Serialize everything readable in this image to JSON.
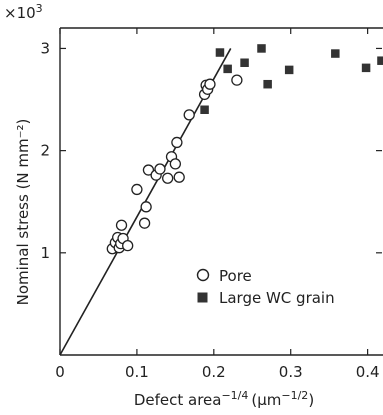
{
  "chart_data": {
    "type": "scatter",
    "title": "",
    "xlabel": "Defect area",
    "xlabel_sup": "−1/4",
    "xlabel_unit_open": "(μm",
    "xlabel_unit_sup": "−1/2",
    "xlabel_unit_close": ")",
    "ylabel": "Nominal stress (N mm⁻²)",
    "y_multiplier": "×10",
    "y_multiplier_sup": "3",
    "xlim": [
      0,
      0.42
    ],
    "ylim": [
      0,
      3.2
    ],
    "x_ticks": [
      0,
      0.1,
      0.2,
      0.3,
      0.4
    ],
    "x_tick_labels": [
      "0",
      "0.1",
      "0.2",
      "0.3",
      "0.4"
    ],
    "y_ticks": [
      1,
      2,
      3
    ],
    "y_tick_labels": [
      "1",
      "2",
      "3"
    ],
    "grid": false,
    "legend_position": "lower-right",
    "series": [
      {
        "name": "Pore",
        "marker": "open-circle",
        "points": [
          [
            0.068,
            1.04
          ],
          [
            0.072,
            1.1
          ],
          [
            0.075,
            1.15
          ],
          [
            0.077,
            1.05
          ],
          [
            0.079,
            1.09
          ],
          [
            0.08,
            1.27
          ],
          [
            0.082,
            1.14
          ],
          [
            0.088,
            1.07
          ],
          [
            0.1,
            1.62
          ],
          [
            0.11,
            1.29
          ],
          [
            0.112,
            1.45
          ],
          [
            0.115,
            1.81
          ],
          [
            0.125,
            1.76
          ],
          [
            0.13,
            1.82
          ],
          [
            0.14,
            1.73
          ],
          [
            0.145,
            1.94
          ],
          [
            0.15,
            1.87
          ],
          [
            0.152,
            2.08
          ],
          [
            0.155,
            1.74
          ],
          [
            0.168,
            2.35
          ],
          [
            0.188,
            2.55
          ],
          [
            0.19,
            2.64
          ],
          [
            0.192,
            2.6
          ],
          [
            0.195,
            2.65
          ],
          [
            0.23,
            2.69
          ]
        ]
      },
      {
        "name": "Large WC grain",
        "marker": "filled-square",
        "points": [
          [
            0.188,
            2.4
          ],
          [
            0.208,
            2.96
          ],
          [
            0.218,
            2.8
          ],
          [
            0.24,
            2.86
          ],
          [
            0.262,
            3.0
          ],
          [
            0.27,
            2.65
          ],
          [
            0.298,
            2.79
          ],
          [
            0.358,
            2.95
          ],
          [
            0.398,
            2.81
          ],
          [
            0.418,
            2.88
          ]
        ]
      }
    ],
    "fit_line": {
      "x": [
        0,
        0.222
      ],
      "y": [
        0,
        3.0
      ]
    }
  },
  "colors": {
    "ink": "#222222",
    "background": "#ffffff"
  }
}
